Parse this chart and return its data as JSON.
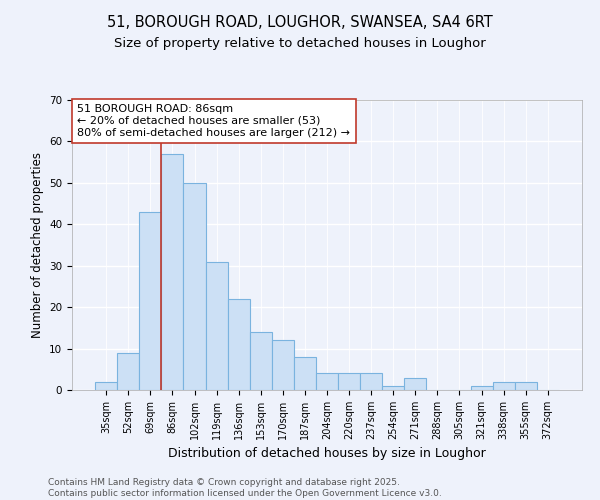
{
  "title1": "51, BOROUGH ROAD, LOUGHOR, SWANSEA, SA4 6RT",
  "title2": "Size of property relative to detached houses in Loughor",
  "xlabel": "Distribution of detached houses by size in Loughor",
  "ylabel": "Number of detached properties",
  "categories": [
    "35sqm",
    "52sqm",
    "69sqm",
    "86sqm",
    "102sqm",
    "119sqm",
    "136sqm",
    "153sqm",
    "170sqm",
    "187sqm",
    "204sqm",
    "220sqm",
    "237sqm",
    "254sqm",
    "271sqm",
    "288sqm",
    "305sqm",
    "321sqm",
    "338sqm",
    "355sqm",
    "372sqm"
  ],
  "values": [
    2,
    9,
    43,
    57,
    50,
    31,
    22,
    14,
    12,
    8,
    4,
    4,
    4,
    1,
    3,
    0,
    0,
    1,
    2,
    2,
    0
  ],
  "bar_color": "#cce0f5",
  "bar_edge_color": "#7ab3df",
  "vline_x_index": 3,
  "vline_color": "#c0392b",
  "annotation_line1": "51 BOROUGH ROAD: 86sqm",
  "annotation_line2": "← 20% of detached houses are smaller (53)",
  "annotation_line3": "80% of semi-detached houses are larger (212) →",
  "annotation_box_color": "#ffffff",
  "annotation_box_edge": "#c0392b",
  "ylim": [
    0,
    70
  ],
  "yticks": [
    0,
    10,
    20,
    30,
    40,
    50,
    60,
    70
  ],
  "footer": "Contains HM Land Registry data © Crown copyright and database right 2025.\nContains public sector information licensed under the Open Government Licence v3.0.",
  "bg_color": "#eef2fb",
  "grid_color": "#ffffff",
  "title_fontsize": 10.5,
  "subtitle_fontsize": 9.5,
  "tick_fontsize": 7,
  "ylabel_fontsize": 8.5,
  "xlabel_fontsize": 9,
  "annotation_fontsize": 8,
  "footer_fontsize": 6.5
}
